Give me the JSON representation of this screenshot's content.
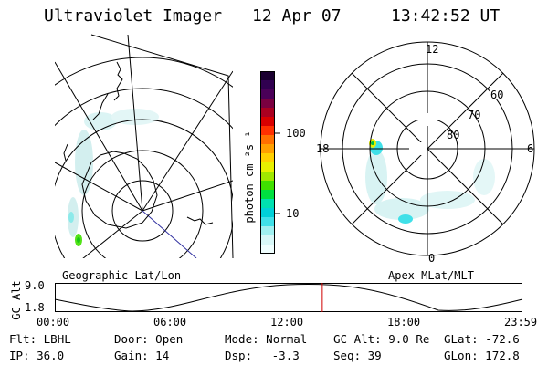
{
  "header": {
    "title": "Ultraviolet Imager",
    "date": "12 Apr 07",
    "time": "13:42:52 UT"
  },
  "panels": {
    "geographic_label": "Geographic Lat/Lon",
    "apex_label": "Apex MLat/MLT"
  },
  "colorbar": {
    "unit_label": "photon cm⁻²s⁻¹",
    "ticks": [
      "100",
      "10"
    ],
    "colors": [
      "#1a0030",
      "#300050",
      "#4a0058",
      "#7a0040",
      "#aa0020",
      "#d80000",
      "#ff3000",
      "#ff7000",
      "#ffa000",
      "#ffd000",
      "#e8f000",
      "#a0e800",
      "#40e000",
      "#00e040",
      "#00e0b0",
      "#00d0d8",
      "#40e0e8",
      "#a0f0f0",
      "#d8f8f8",
      "#f0ffff"
    ]
  },
  "polar_plot": {
    "mlt_labels": {
      "top": "12",
      "left": "18",
      "right": "6",
      "bottom": "0"
    },
    "lat_labels": [
      "60",
      "70",
      "80"
    ]
  },
  "altitude_strip": {
    "axis_title": "GC Alt",
    "y_ticks": [
      "9.0",
      "1.8"
    ],
    "x_ticks": [
      "00:00",
      "06:00",
      "12:00",
      "18:00",
      "23:59"
    ],
    "current_time_fraction": 0.572
  },
  "info": {
    "row1": [
      {
        "label": "Flt:",
        "value": "LBHL"
      },
      {
        "label": "Door:",
        "value": "Open"
      },
      {
        "label": "Mode:",
        "value": "Normal"
      },
      {
        "label": "GC Alt:",
        "value": "9.0 Re"
      },
      {
        "label": "GLat:",
        "value": "-72.6"
      }
    ],
    "row2": [
      {
        "label": "IP:",
        "value": "36.0"
      },
      {
        "label": "Gain:",
        "value": "14"
      },
      {
        "label": "Dsp:",
        "value": "-3.3"
      },
      {
        "label": "Seq:",
        "value": "39"
      },
      {
        "label": "GLon:",
        "value": "172.8"
      }
    ]
  }
}
